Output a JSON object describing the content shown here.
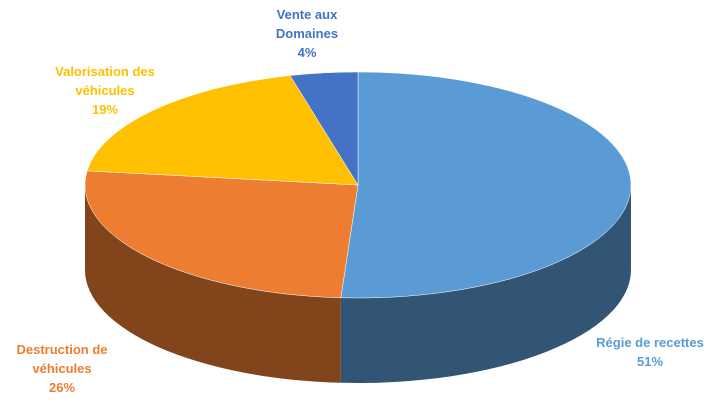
{
  "chart_data": {
    "type": "pie",
    "categories": [
      "Régie de recettes",
      "Destruction de véhicules",
      "Valorisation des véhicules",
      "Vente aux Domaines"
    ],
    "values": [
      51,
      26,
      19,
      4
    ],
    "value_labels": [
      "51%",
      "26%",
      "19%",
      "4%"
    ],
    "colors": [
      "#5b9bd5",
      "#ed7d31",
      "#ffc000",
      "#4472c4"
    ]
  }
}
